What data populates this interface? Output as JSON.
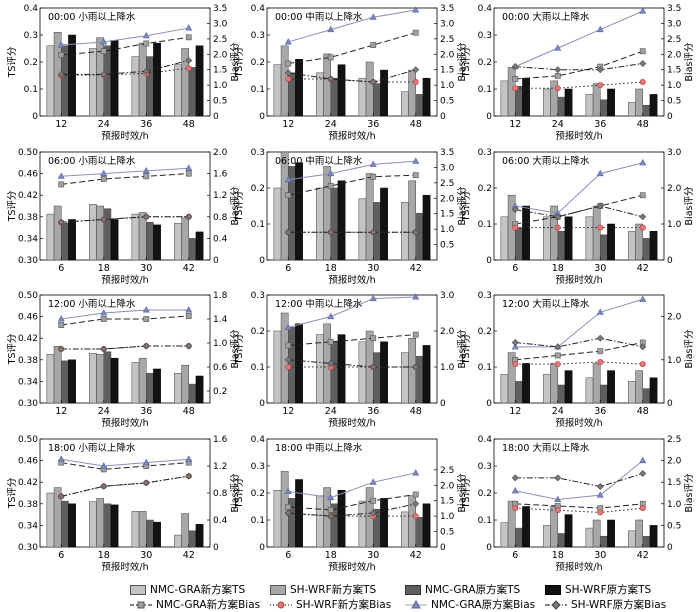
{
  "chart_data": {
    "type": "bar+line",
    "x_label": "预报时效/h",
    "left_axis_label": "TS评分",
    "right_axis_label": "Bias评分",
    "legend": [
      "NMC-GRA新方案TS",
      "SH-WRF新方案TS",
      "NMC-GRA原方案TS",
      "SH-WRF原方案TS",
      "NMC-GRA新方案Bias",
      "SH-WRF新方案Bias",
      "NMC-GRA原方案Bias",
      "SH-WRF原方案Bias"
    ],
    "colors": {
      "nmc_new_ts": "#c4c4c4",
      "sh_new_ts": "#a7a7a7",
      "nmc_old_ts": "#5f5f5f",
      "sh_old_ts": "#121212",
      "nmc_new_bias": "#a0a0a0",
      "sh_new_bias": "#e27777",
      "nmc_old_bias": "#7e89c2",
      "sh_old_bias": "#7a7a7a"
    },
    "panels": [
      {
        "title": "00:00  小雨以上降水",
        "x": [
          "12",
          "24",
          "36",
          "48"
        ],
        "ts_ylim": [
          0,
          0.4
        ],
        "ts_ticks": [
          "0",
          "0.1",
          "0.2",
          "0.3",
          "0.4"
        ],
        "bias_ylim": [
          0,
          3.5
        ],
        "bias_ticks": [
          "0",
          "0.5",
          "1.0",
          "1.5",
          "2.0",
          "2.5",
          "3.0",
          "3.5"
        ],
        "ts": [
          [
            0.26,
            0.25,
            0.22,
            0.19
          ],
          [
            0.31,
            0.29,
            0.27,
            0.25
          ],
          [
            0.26,
            0.26,
            0.22,
            0.18
          ],
          [
            0.3,
            0.28,
            0.27,
            0.26
          ]
        ],
        "bias": [
          [
            1.98,
            2.1,
            2.35,
            2.55
          ],
          [
            1.32,
            1.33,
            1.38,
            1.55
          ],
          [
            2.3,
            2.4,
            2.6,
            2.85
          ],
          [
            1.35,
            1.35,
            1.45,
            1.8
          ]
        ]
      },
      {
        "title": "00:00  中雨以上降水",
        "x": [
          "12",
          "24",
          "36",
          "48"
        ],
        "ts_ylim": [
          0,
          0.4
        ],
        "ts_ticks": [
          "0",
          "0.1",
          "0.2",
          "0.3",
          "0.4"
        ],
        "bias_ylim": [
          0,
          3.5
        ],
        "bias_ticks": [
          "0",
          "0.5",
          "1.0",
          "1.5",
          "2.0",
          "2.5",
          "3.0",
          "3.5"
        ],
        "ts": [
          [
            0.19,
            0.16,
            0.14,
            0.09
          ],
          [
            0.26,
            0.23,
            0.2,
            0.17
          ],
          [
            0.16,
            0.14,
            0.12,
            0.08
          ],
          [
            0.21,
            0.19,
            0.17,
            0.14
          ]
        ],
        "bias": [
          [
            1.7,
            1.9,
            2.3,
            2.7
          ],
          [
            1.2,
            1.2,
            1.1,
            1.1
          ],
          [
            2.4,
            2.8,
            3.2,
            3.5
          ],
          [
            1.4,
            1.2,
            1.1,
            1.5
          ]
        ]
      },
      {
        "title": "00:00  大雨以上降水",
        "x": [
          "12",
          "24",
          "36",
          "48"
        ],
        "ts_ylim": [
          0,
          0.4
        ],
        "ts_ticks": [
          "0",
          "0.1",
          "0.2",
          "0.3",
          "0.4"
        ],
        "bias_ylim": [
          0,
          3.5
        ],
        "bias_ticks": [
          "0",
          "0.5",
          "1.0",
          "1.5",
          "2.0",
          "2.5",
          "3.0",
          "3.5"
        ],
        "ts": [
          [
            0.13,
            0.1,
            0.08,
            0.05
          ],
          [
            0.18,
            0.13,
            0.12,
            0.1
          ],
          [
            0.11,
            0.07,
            0.06,
            0.04
          ],
          [
            0.14,
            0.1,
            0.1,
            0.08
          ]
        ],
        "bias": [
          [
            1.2,
            1.3,
            1.6,
            2.1
          ],
          [
            0.9,
            0.9,
            1.0,
            1.1
          ],
          [
            1.6,
            2.2,
            2.8,
            3.4
          ],
          [
            1.6,
            1.5,
            1.5,
            1.7
          ]
        ]
      },
      {
        "title": "06:00  小雨以上降水",
        "x": [
          "6",
          "18",
          "30",
          "42"
        ],
        "ts_ylim": [
          0.3,
          0.5
        ],
        "ts_ticks": [
          "0.30",
          "0.34",
          "0.38",
          "0.42",
          "0.46",
          "0.50"
        ],
        "bias_ylim": [
          0,
          2.0
        ],
        "bias_ticks": [
          "0",
          "0.4",
          "0.8",
          "1.2",
          "1.6",
          "2.0"
        ],
        "ts": [
          [
            0.385,
            0.403,
            0.385,
            0.368
          ],
          [
            0.4,
            0.4,
            0.388,
            0.378
          ],
          [
            0.368,
            0.395,
            0.37,
            0.34
          ],
          [
            0.375,
            0.375,
            0.365,
            0.352
          ]
        ],
        "bias": [
          [
            1.4,
            1.5,
            1.55,
            1.6
          ],
          [
            0.7,
            0.75,
            0.8,
            0.8
          ],
          [
            1.55,
            1.6,
            1.65,
            1.7
          ],
          [
            0.7,
            0.75,
            0.8,
            0.8
          ]
        ]
      },
      {
        "title": "06:00  中雨以上降水",
        "x": [
          "6",
          "18",
          "30",
          "42"
        ],
        "ts_ylim": [
          0,
          0.3
        ],
        "ts_ticks": [
          "0",
          "0.1",
          "0.2",
          "0.3"
        ],
        "bias_ylim": [
          0,
          3.5
        ],
        "bias_ticks": [
          "0.5",
          "1.0",
          "1.5",
          "2.0",
          "2.5",
          "3.0",
          "3.5"
        ],
        "ts": [
          [
            0.2,
            0.2,
            0.17,
            0.16
          ],
          [
            0.31,
            0.26,
            0.24,
            0.22
          ],
          [
            0.26,
            0.2,
            0.16,
            0.13
          ],
          [
            0.27,
            0.22,
            0.2,
            0.18
          ]
        ],
        "bias": [
          [
            2.1,
            2.4,
            2.7,
            2.75
          ],
          [
            0.9,
            0.9,
            0.9,
            0.9
          ],
          [
            2.6,
            2.8,
            3.1,
            3.2
          ],
          [
            0.9,
            0.9,
            0.9,
            0.9
          ]
        ]
      },
      {
        "title": "06:00  大雨以上降水",
        "x": [
          "6",
          "18",
          "30",
          "42"
        ],
        "ts_ylim": [
          0,
          0.3
        ],
        "ts_ticks": [
          "0",
          "0.1",
          "0.2",
          "0.3"
        ],
        "bias_ylim": [
          0,
          3.0
        ],
        "bias_ticks": [
          "0",
          "1.0",
          "2.0",
          "3.0"
        ],
        "ts": [
          [
            0.12,
            0.12,
            0.12,
            0.08
          ],
          [
            0.18,
            0.15,
            0.15,
            0.1
          ],
          [
            0.09,
            0.08,
            0.07,
            0.06
          ],
          [
            0.15,
            0.12,
            0.1,
            0.08
          ]
        ],
        "bias": [
          [
            1.0,
            1.2,
            1.5,
            1.8
          ],
          [
            0.9,
            0.9,
            0.9,
            0.9
          ],
          [
            1.5,
            1.3,
            2.4,
            2.7
          ],
          [
            1.4,
            1.2,
            1.5,
            1.2
          ]
        ]
      },
      {
        "title": "12:00  小雨以上降水",
        "x": [
          "12",
          "24",
          "36",
          "48"
        ],
        "ts_ylim": [
          0.3,
          0.5
        ],
        "ts_ticks": [
          "0.30",
          "0.34",
          "0.38",
          "0.42",
          "0.46",
          "0.50"
        ],
        "bias_ylim": [
          0,
          1.8
        ],
        "bias_ticks": [
          "0.2",
          "0.6",
          "1.0",
          "1.4",
          "1.8"
        ],
        "ts": [
          [
            0.39,
            0.392,
            0.375,
            0.355
          ],
          [
            0.405,
            0.39,
            0.383,
            0.37
          ],
          [
            0.378,
            0.395,
            0.355,
            0.335
          ],
          [
            0.38,
            0.383,
            0.363,
            0.35
          ]
        ],
        "bias": [
          [
            1.3,
            1.4,
            1.4,
            1.45
          ],
          [
            0.9,
            0.9,
            0.95,
            0.95
          ],
          [
            1.4,
            1.5,
            1.55,
            1.55
          ],
          [
            0.9,
            0.9,
            0.95,
            0.95
          ]
        ]
      },
      {
        "title": "12:00  中雨以上降水",
        "x": [
          "12",
          "24",
          "36",
          "48"
        ],
        "ts_ylim": [
          0,
          0.3
        ],
        "ts_ticks": [
          "0",
          "0.1",
          "0.2",
          "0.3"
        ],
        "bias_ylim": [
          0,
          3.0
        ],
        "bias_ticks": [
          "0",
          "1.0",
          "2.0",
          "3.0"
        ],
        "ts": [
          [
            0.2,
            0.19,
            0.17,
            0.14
          ],
          [
            0.25,
            0.22,
            0.2,
            0.18
          ],
          [
            0.21,
            0.17,
            0.14,
            0.13
          ],
          [
            0.22,
            0.19,
            0.17,
            0.16
          ]
        ],
        "bias": [
          [
            1.6,
            1.7,
            1.8,
            1.9
          ],
          [
            1.0,
            1.0,
            1.0,
            1.0
          ],
          [
            2.1,
            2.4,
            2.9,
            2.95
          ],
          [
            1.2,
            1.1,
            1.0,
            1.0
          ]
        ]
      },
      {
        "title": "12:00  大雨以上降水",
        "x": [
          "12",
          "24",
          "36",
          "48"
        ],
        "ts_ylim": [
          0,
          0.3
        ],
        "ts_ticks": [
          "0",
          "0.1",
          "0.2",
          "0.3"
        ],
        "bias_ylim": [
          0,
          2.5
        ],
        "bias_ticks": [
          "0",
          "1.0",
          "2.0"
        ],
        "ts": [
          [
            0.08,
            0.08,
            0.07,
            0.06
          ],
          [
            0.14,
            0.11,
            0.11,
            0.09
          ],
          [
            0.06,
            0.05,
            0.05,
            0.04
          ],
          [
            0.11,
            0.09,
            0.09,
            0.07
          ]
        ],
        "bias": [
          [
            1.0,
            1.1,
            1.2,
            1.4
          ],
          [
            0.9,
            0.9,
            0.95,
            0.9
          ],
          [
            1.3,
            1.3,
            2.1,
            2.4
          ],
          [
            1.4,
            1.3,
            1.5,
            1.3
          ]
        ]
      },
      {
        "title": "18:00  小雨以上降水",
        "x": [
          "6",
          "18",
          "30",
          "42"
        ],
        "ts_ylim": [
          0.3,
          0.5
        ],
        "ts_ticks": [
          "0.30",
          "0.34",
          "0.38",
          "0.42",
          "0.46",
          "0.50"
        ],
        "bias_ylim": [
          0,
          1.6
        ],
        "bias_ticks": [
          "0",
          "0.4",
          "0.8",
          "1.2",
          "1.6"
        ],
        "ts": [
          [
            0.4,
            0.384,
            0.366,
            0.322
          ],
          [
            0.41,
            0.39,
            0.366,
            0.362
          ],
          [
            0.385,
            0.38,
            0.35,
            0.33
          ],
          [
            0.38,
            0.378,
            0.346,
            0.342
          ]
        ],
        "bias": [
          [
            1.25,
            1.15,
            1.2,
            1.25
          ],
          [
            0.75,
            0.9,
            0.95,
            1.05
          ],
          [
            1.3,
            1.2,
            1.25,
            1.3
          ],
          [
            0.75,
            0.9,
            0.95,
            1.05
          ]
        ]
      },
      {
        "title": "18:00  中雨以上降水",
        "x": [
          "6",
          "18",
          "30",
          "42"
        ],
        "ts_ylim": [
          0,
          0.4
        ],
        "ts_ticks": [
          "0",
          "0.1",
          "0.2",
          "0.3",
          "0.4"
        ],
        "bias_ylim": [
          0,
          3.5
        ],
        "bias_ticks": [
          "0",
          "0.5",
          "1.0",
          "1.5",
          "2.0",
          "2.5"
        ],
        "ts": [
          [
            0.21,
            0.19,
            0.17,
            0.13
          ],
          [
            0.28,
            0.22,
            0.22,
            0.19
          ],
          [
            0.18,
            0.16,
            0.14,
            0.11
          ],
          [
            0.25,
            0.21,
            0.18,
            0.16
          ]
        ],
        "bias": [
          [
            1.3,
            1.2,
            1.5,
            1.7
          ],
          [
            1.1,
            1.0,
            1.0,
            1.0
          ],
          [
            1.8,
            1.6,
            2.1,
            2.4
          ],
          [
            1.1,
            1.0,
            1.1,
            1.4
          ]
        ]
      },
      {
        "title": "18:00  大雨以上降水",
        "x": [
          "6",
          "18",
          "30",
          "42"
        ],
        "ts_ylim": [
          0,
          0.4
        ],
        "ts_ticks": [
          "0",
          "0.1",
          "0.2",
          "0.3",
          "0.4"
        ],
        "bias_ylim": [
          0,
          2.5
        ],
        "bias_ticks": [
          "0",
          "0.5",
          "1.0",
          "1.5",
          "2.0",
          "2.5"
        ],
        "ts": [
          [
            0.09,
            0.08,
            0.07,
            0.06
          ],
          [
            0.17,
            0.15,
            0.1,
            0.1
          ],
          [
            0.07,
            0.05,
            0.04,
            0.04
          ],
          [
            0.15,
            0.12,
            0.1,
            0.08
          ]
        ],
        "bias": [
          [
            1.0,
            0.95,
            0.9,
            1.0
          ],
          [
            0.9,
            0.85,
            0.8,
            0.9
          ],
          [
            1.3,
            1.1,
            1.2,
            2.0
          ],
          [
            1.6,
            1.6,
            1.4,
            1.7
          ]
        ]
      }
    ]
  }
}
